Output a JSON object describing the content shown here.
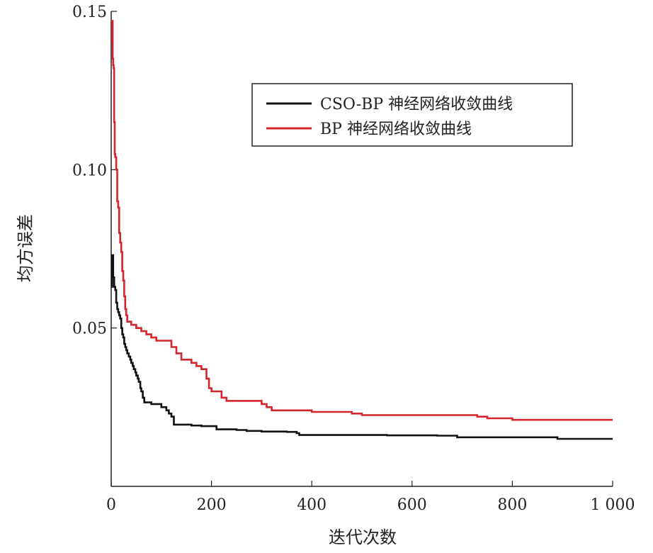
{
  "chart_data": {
    "type": "line",
    "title": "",
    "xlabel": "迭代次数",
    "ylabel": "均方误差",
    "xlim": [
      0,
      1000
    ],
    "ylim": [
      0,
      0.15
    ],
    "xticks": [
      0,
      200,
      400,
      600,
      800,
      1000
    ],
    "xtick_labels": [
      "0",
      "200",
      "400",
      "600",
      "800",
      "1 000"
    ],
    "yticks": [
      0.05,
      0.1,
      0.15
    ],
    "ytick_labels": [
      "0.05",
      "0.10",
      "0.15"
    ],
    "grid": false,
    "legend_position": "top-right",
    "series": [
      {
        "name": "CSO-BP 神经网络收敛曲线",
        "color": "#111111",
        "x": [
          1,
          2,
          4,
          6,
          8,
          10,
          12,
          14,
          16,
          18,
          20,
          22,
          24,
          26,
          28,
          30,
          32,
          35,
          38,
          40,
          43,
          45,
          48,
          50,
          53,
          55,
          58,
          60,
          63,
          66,
          70,
          80,
          95,
          100,
          105,
          110,
          115,
          120,
          125,
          140,
          160,
          180,
          200,
          210,
          230,
          250,
          270,
          300,
          330,
          350,
          370,
          375,
          400,
          450,
          500,
          550,
          600,
          650,
          690,
          720,
          800,
          850,
          890,
          950,
          1000
        ],
        "y": [
          0.063,
          0.073,
          0.066,
          0.063,
          0.062,
          0.058,
          0.056,
          0.055,
          0.054,
          0.053,
          0.05,
          0.048,
          0.047,
          0.045,
          0.044,
          0.043,
          0.042,
          0.041,
          0.04,
          0.039,
          0.038,
          0.037,
          0.036,
          0.035,
          0.034,
          0.033,
          0.031,
          0.03,
          0.028,
          0.0265,
          0.0265,
          0.026,
          0.026,
          0.025,
          0.025,
          0.024,
          0.023,
          0.022,
          0.0195,
          0.0195,
          0.0192,
          0.019,
          0.019,
          0.018,
          0.018,
          0.0178,
          0.0175,
          0.0173,
          0.0173,
          0.0172,
          0.0168,
          0.0162,
          0.0162,
          0.0162,
          0.0162,
          0.0161,
          0.0161,
          0.016,
          0.0155,
          0.0155,
          0.0155,
          0.0155,
          0.015,
          0.015,
          0.015
        ]
      },
      {
        "name": "BP 神经网络收敛曲线",
        "color": "#d4252c",
        "x": [
          1,
          2,
          3,
          4,
          5,
          6,
          7,
          8,
          10,
          12,
          14,
          16,
          18,
          20,
          22,
          24,
          26,
          28,
          30,
          32,
          35,
          38,
          40,
          45,
          50,
          55,
          60,
          65,
          70,
          75,
          80,
          90,
          100,
          110,
          120,
          130,
          140,
          150,
          160,
          170,
          180,
          190,
          195,
          200,
          220,
          230,
          260,
          300,
          310,
          320,
          350,
          400,
          470,
          480,
          500,
          550,
          650,
          700,
          730,
          750,
          800,
          1000
        ],
        "y": [
          0.14,
          0.147,
          0.135,
          0.133,
          0.132,
          0.115,
          0.105,
          0.104,
          0.1,
          0.09,
          0.088,
          0.08,
          0.077,
          0.074,
          0.068,
          0.065,
          0.06,
          0.056,
          0.054,
          0.052,
          0.052,
          0.052,
          0.051,
          0.051,
          0.05,
          0.05,
          0.049,
          0.049,
          0.048,
          0.048,
          0.047,
          0.046,
          0.046,
          0.046,
          0.044,
          0.042,
          0.04,
          0.04,
          0.039,
          0.038,
          0.037,
          0.034,
          0.031,
          0.03,
          0.028,
          0.027,
          0.027,
          0.026,
          0.025,
          0.024,
          0.024,
          0.0235,
          0.0235,
          0.023,
          0.0225,
          0.0225,
          0.0225,
          0.0225,
          0.022,
          0.0215,
          0.021,
          0.021
        ]
      }
    ]
  }
}
